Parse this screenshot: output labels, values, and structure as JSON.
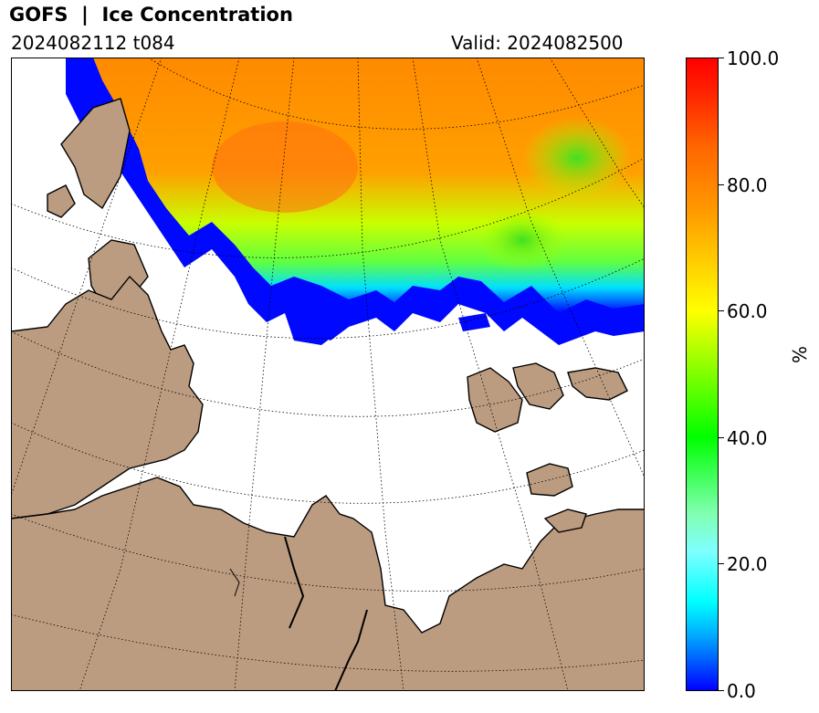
{
  "header": {
    "title": "GOFS  |  Ice Concentration",
    "run": "2024082112 t084",
    "valid": "Valid: 2024082500"
  },
  "colorbar": {
    "unit": "%",
    "ticks": [
      "100.0",
      "80.0",
      "60.0",
      "40.0",
      "20.0",
      "0.0"
    ]
  },
  "colors": {
    "land": "#bc9c80",
    "ocean": "#ffffff",
    "ice_edge": "#0000ff",
    "ice_core": "#ff8000"
  }
}
